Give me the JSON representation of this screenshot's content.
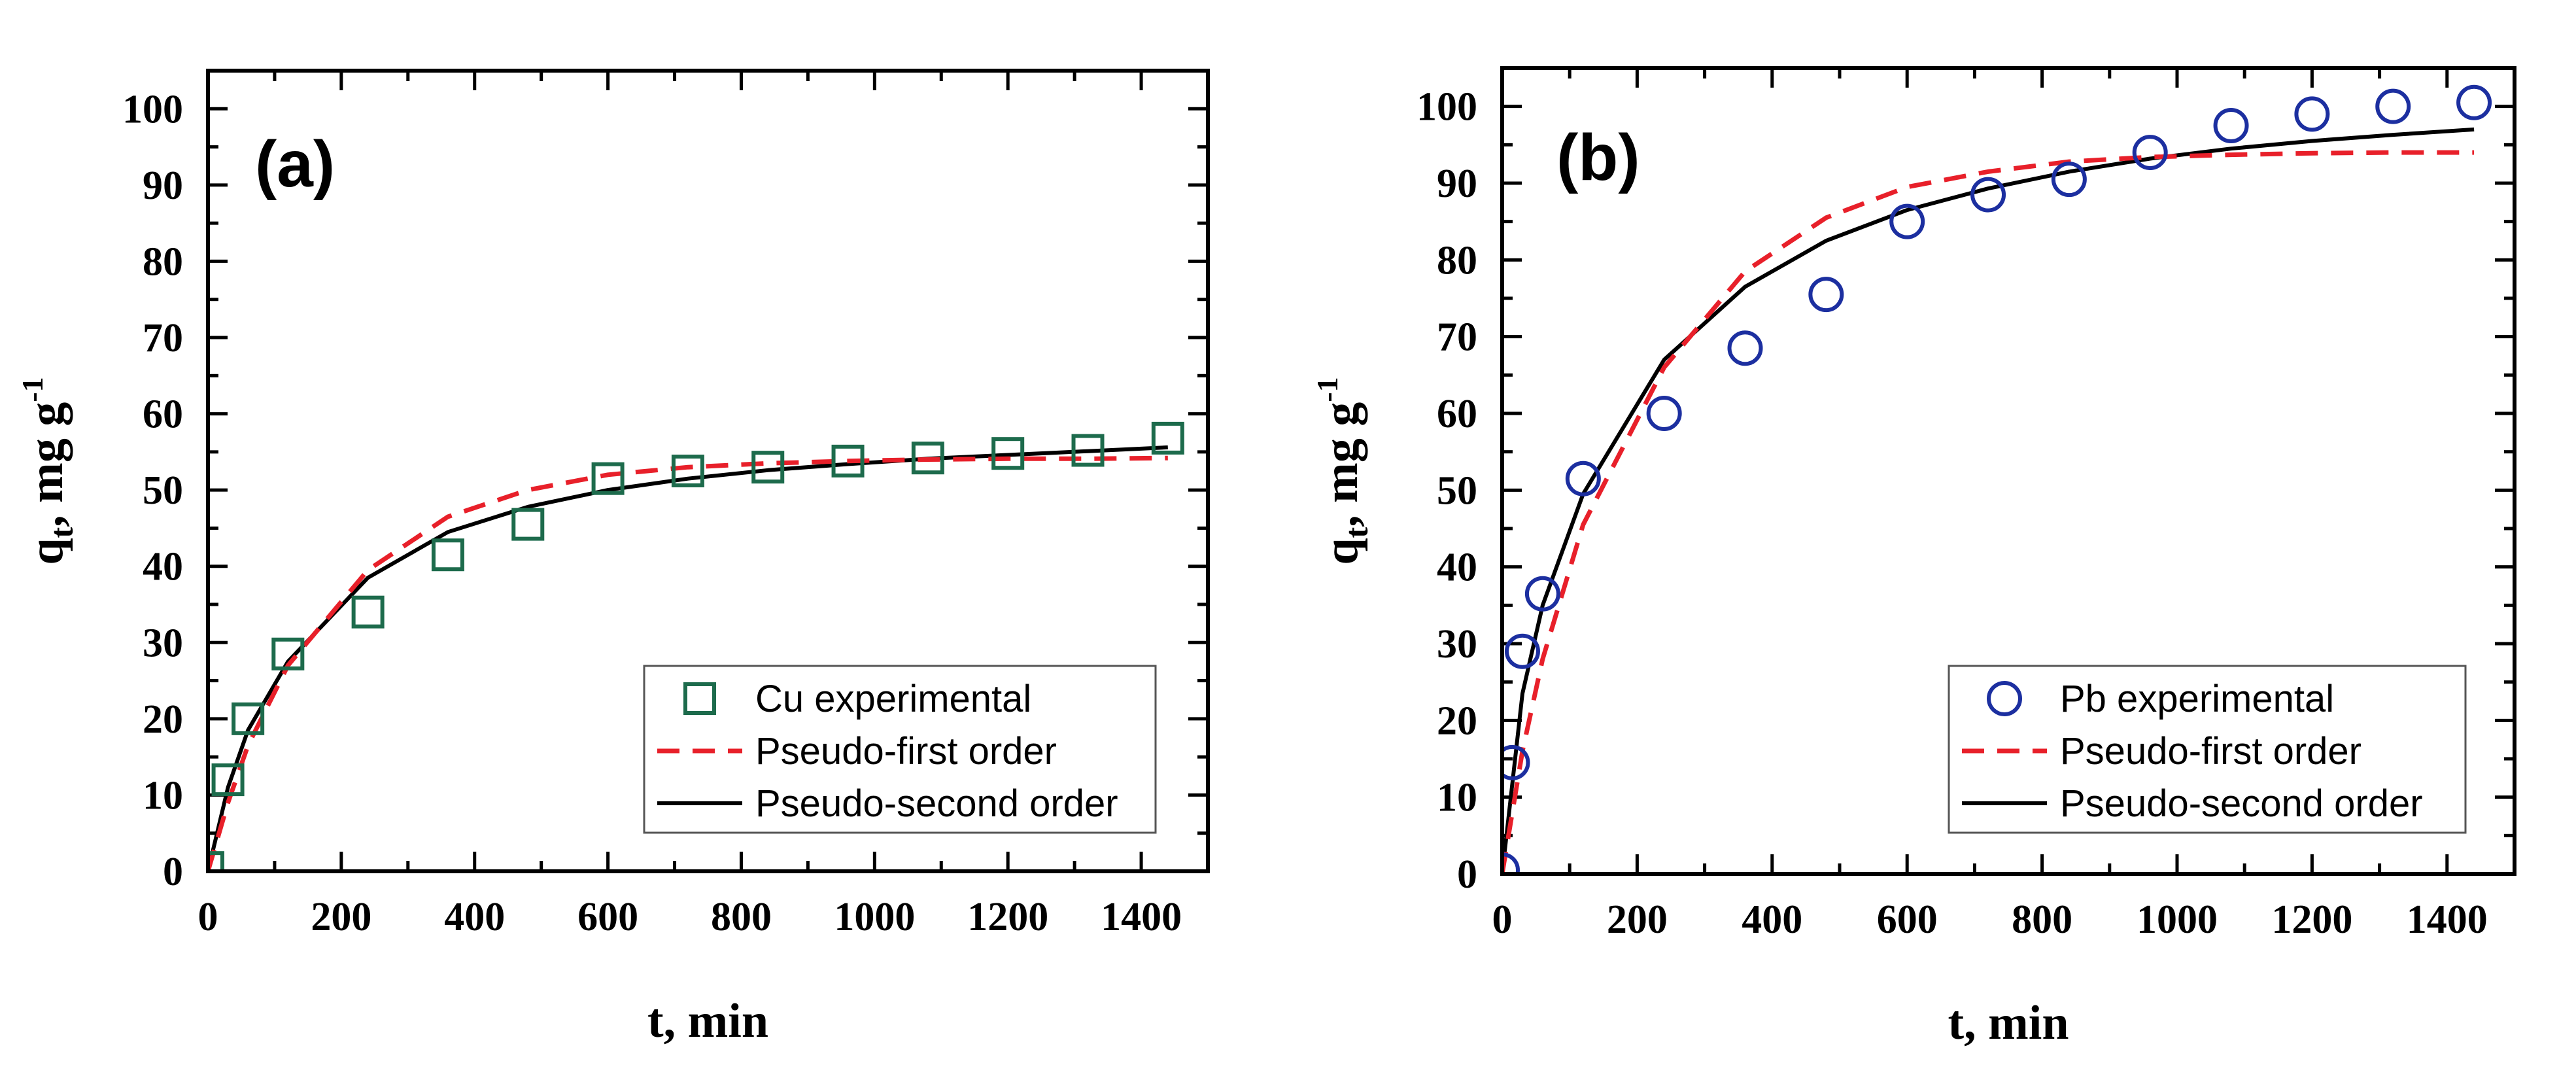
{
  "chart_data": [
    {
      "type": "scatter",
      "panel_label": "(a)",
      "xlabel": "t, min",
      "ylabel_main": "q",
      "ylabel_sub": "t",
      "ylabel_rest": ", mg g",
      "ylabel_sup": "-1",
      "xlim": [
        0,
        1500
      ],
      "ylim": [
        0,
        105
      ],
      "xticks": [
        0,
        200,
        400,
        600,
        800,
        1000,
        1200,
        1400
      ],
      "yticks": [
        0,
        10,
        20,
        30,
        40,
        50,
        60,
        70,
        80,
        90,
        100
      ],
      "legend_position": "lower-right",
      "series": [
        {
          "name": "Cu experimental",
          "kind": "marker",
          "marker": "square",
          "color": "#1d6b4c",
          "x": [
            0,
            30,
            60,
            120,
            240,
            360,
            480,
            600,
            720,
            840,
            960,
            1080,
            1200,
            1320,
            1440
          ],
          "y": [
            0.5,
            12,
            20,
            28.5,
            34,
            41.5,
            45.5,
            51.5,
            52.5,
            53,
            53.8,
            54.2,
            54.8,
            55.2,
            56.8
          ]
        },
        {
          "name": "Pseudo-first order",
          "kind": "line",
          "dash": "dashed",
          "color": "#e8202a",
          "x": [
            0,
            30,
            60,
            120,
            240,
            360,
            480,
            600,
            720,
            840,
            960,
            1080,
            1200,
            1320,
            1440
          ],
          "y": [
            0,
            9,
            16.5,
            27,
            39.5,
            46.5,
            50,
            52,
            53,
            53.5,
            53.8,
            54,
            54.1,
            54.1,
            54.2
          ]
        },
        {
          "name": "Pseudo-second order",
          "kind": "line",
          "dash": "solid",
          "color": "#000000",
          "x": [
            0,
            30,
            60,
            120,
            240,
            360,
            480,
            600,
            720,
            840,
            960,
            1080,
            1200,
            1320,
            1440
          ],
          "y": [
            0,
            11,
            18.5,
            27.5,
            38.5,
            44.5,
            47.8,
            50,
            51.5,
            52.6,
            53.4,
            54.1,
            54.6,
            55.1,
            55.6
          ]
        }
      ]
    },
    {
      "type": "scatter",
      "panel_label": "(b)",
      "xlabel": "t, min",
      "ylabel_main": "q",
      "ylabel_sub": "t",
      "ylabel_rest": ", mg g",
      "ylabel_sup": "-1",
      "xlim": [
        0,
        1500
      ],
      "ylim": [
        0,
        105
      ],
      "xticks": [
        0,
        200,
        400,
        600,
        800,
        1000,
        1200,
        1400
      ],
      "yticks": [
        0,
        10,
        20,
        30,
        40,
        50,
        60,
        70,
        80,
        90,
        100
      ],
      "legend_position": "lower-right",
      "series": [
        {
          "name": "Pb experimental",
          "kind": "marker",
          "marker": "circle",
          "color": "#1c2fa0",
          "x": [
            0,
            15,
            30,
            60,
            120,
            240,
            360,
            480,
            600,
            720,
            840,
            960,
            1080,
            1200,
            1320,
            1440
          ],
          "y": [
            0.5,
            14.5,
            29,
            36.5,
            51.5,
            60,
            68.5,
            75.5,
            85,
            88.5,
            90.5,
            94,
            97.5,
            99,
            100,
            100.5
          ]
        },
        {
          "name": "Pseudo-first order",
          "kind": "line",
          "dash": "dashed",
          "color": "#e8202a",
          "x": [
            0,
            30,
            60,
            120,
            240,
            360,
            480,
            600,
            720,
            840,
            960,
            1080,
            1200,
            1320,
            1440
          ],
          "y": [
            0,
            16,
            28,
            45.5,
            66,
            78.5,
            85.5,
            89.5,
            91.5,
            92.8,
            93.4,
            93.7,
            93.9,
            94,
            94
          ]
        },
        {
          "name": "Pseudo-second order",
          "kind": "line",
          "dash": "solid",
          "color": "#000000",
          "x": [
            0,
            30,
            60,
            120,
            240,
            360,
            480,
            600,
            720,
            840,
            960,
            1080,
            1200,
            1320,
            1440
          ],
          "y": [
            0,
            23.5,
            35,
            49.5,
            67,
            76.5,
            82.5,
            86.5,
            89.3,
            91.5,
            93.2,
            94.5,
            95.5,
            96.3,
            97
          ]
        }
      ]
    }
  ]
}
